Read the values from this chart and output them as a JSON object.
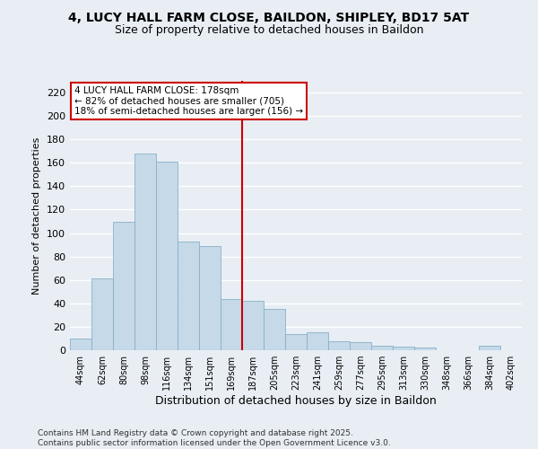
{
  "title1": "4, LUCY HALL FARM CLOSE, BAILDON, SHIPLEY, BD17 5AT",
  "title2": "Size of property relative to detached houses in Baildon",
  "xlabel": "Distribution of detached houses by size in Baildon",
  "ylabel": "Number of detached properties",
  "categories": [
    "44sqm",
    "62sqm",
    "80sqm",
    "98sqm",
    "116sqm",
    "134sqm",
    "151sqm",
    "169sqm",
    "187sqm",
    "205sqm",
    "223sqm",
    "241sqm",
    "259sqm",
    "277sqm",
    "295sqm",
    "313sqm",
    "330sqm",
    "348sqm",
    "366sqm",
    "384sqm",
    "402sqm"
  ],
  "values": [
    10,
    61,
    110,
    168,
    161,
    93,
    89,
    44,
    42,
    35,
    14,
    15,
    8,
    7,
    4,
    3,
    2,
    0,
    0,
    4,
    0
  ],
  "bar_color": "#c5d9e8",
  "bar_edge_color": "#8ab0c8",
  "vline_color": "#cc0000",
  "annotation_title": "4 LUCY HALL FARM CLOSE: 178sqm",
  "annotation_line1": "← 82% of detached houses are smaller (705)",
  "annotation_line2": "18% of semi-detached houses are larger (156) →",
  "annotation_box_color": "#ffffff",
  "annotation_box_edge": "#cc0000",
  "footer": "Contains HM Land Registry data © Crown copyright and database right 2025.\nContains public sector information licensed under the Open Government Licence v3.0.",
  "ylim": [
    0,
    230
  ],
  "yticks": [
    0,
    20,
    40,
    60,
    80,
    100,
    120,
    140,
    160,
    180,
    200,
    220
  ],
  "background_color": "#e8eef4",
  "grid_color": "#ffffff",
  "title_fontsize": 10,
  "subtitle_fontsize": 9
}
